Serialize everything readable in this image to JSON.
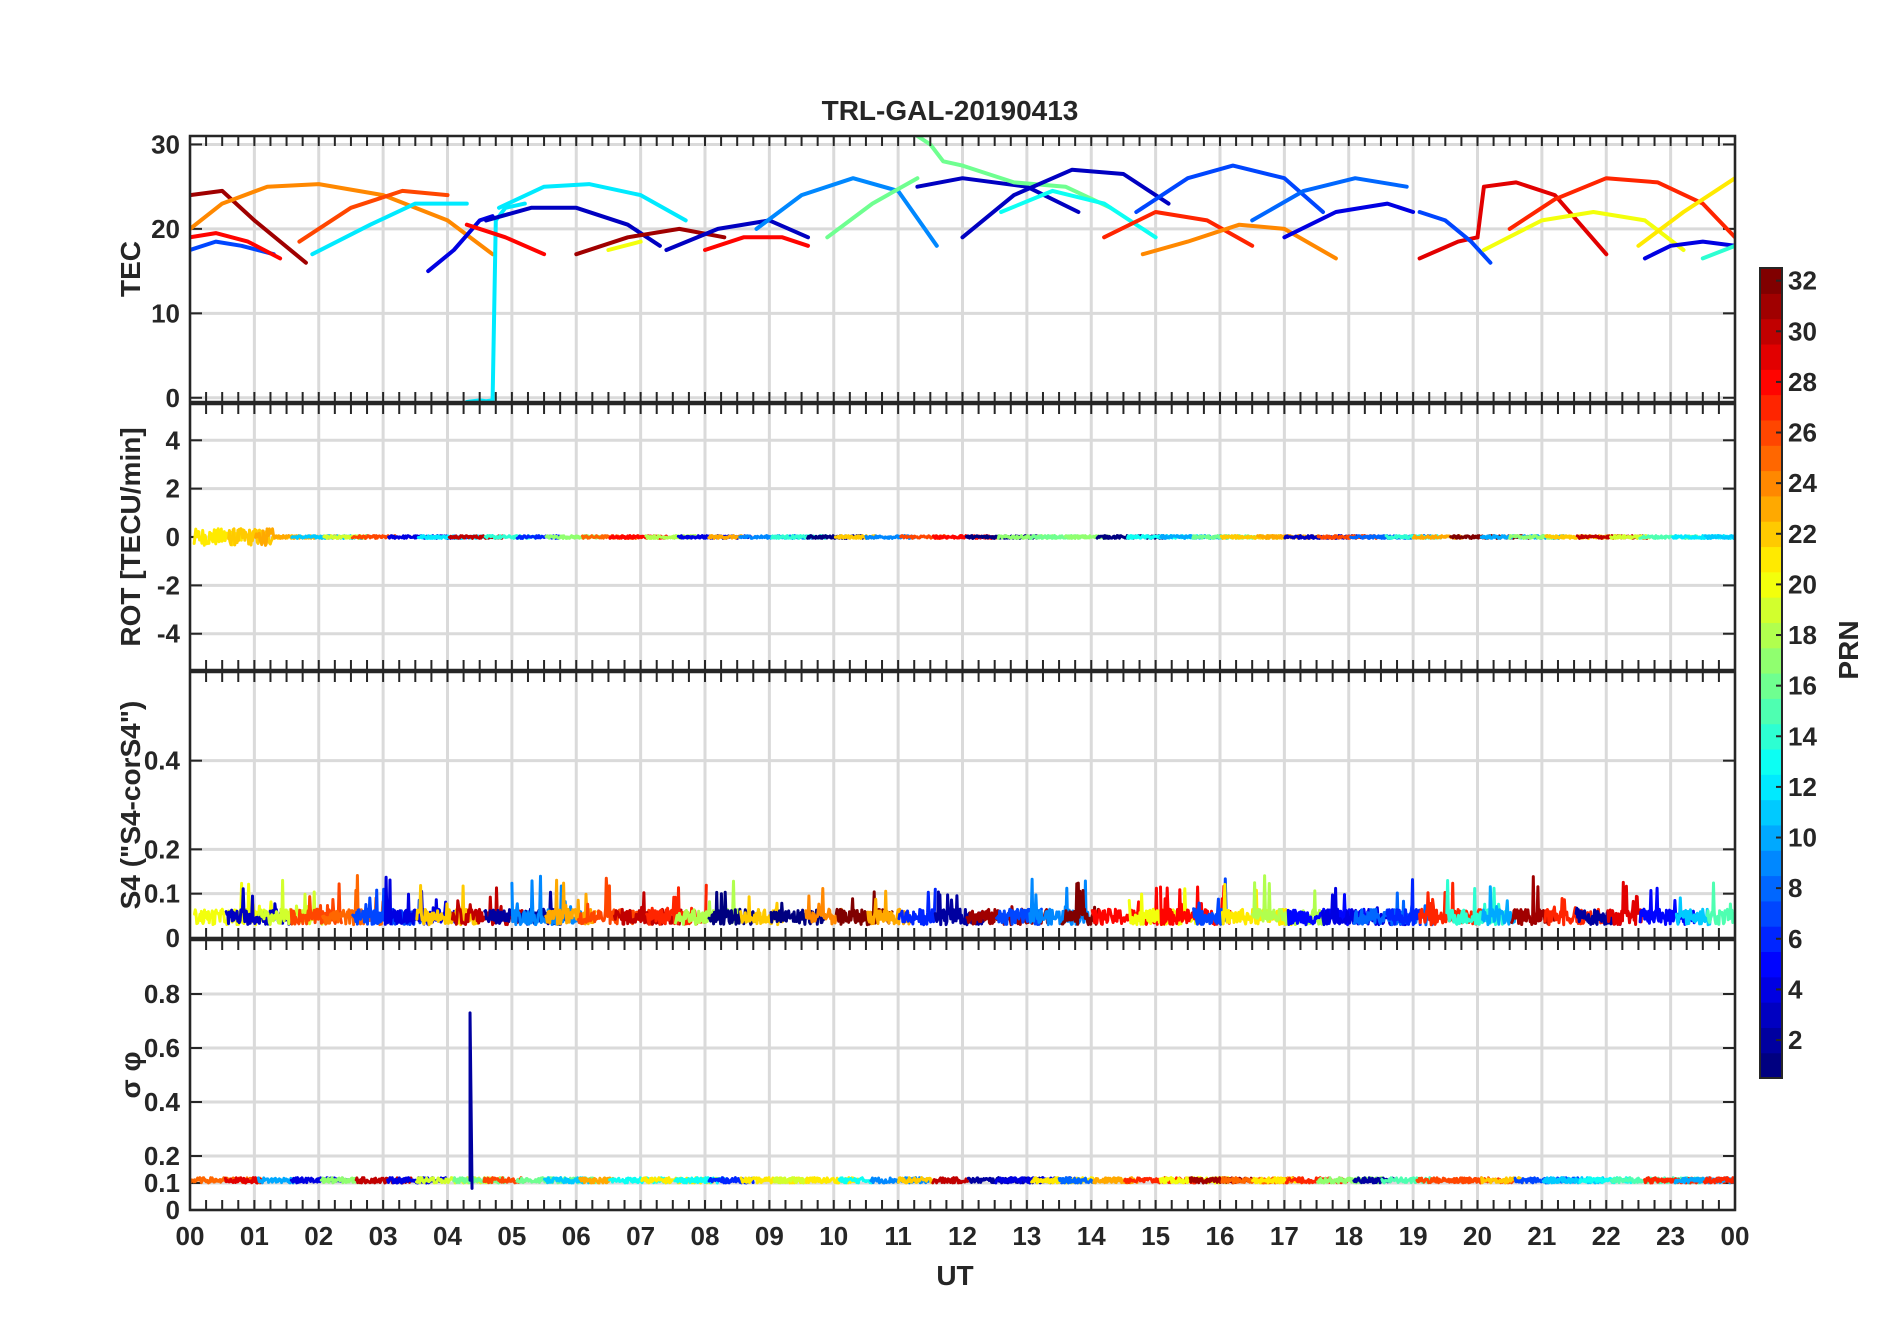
{
  "chart_data": {
    "type": "line",
    "title": "TRL-GAL-20190413",
    "xlabel": "UT",
    "xlim": [
      0,
      24
    ],
    "x_tick_labels": [
      "00",
      "01",
      "02",
      "03",
      "04",
      "05",
      "06",
      "07",
      "08",
      "09",
      "10",
      "11",
      "12",
      "13",
      "14",
      "15",
      "16",
      "17",
      "18",
      "19",
      "20",
      "21",
      "22",
      "23",
      "00"
    ],
    "colorbar": {
      "label": "PRN",
      "range": [
        1,
        32
      ],
      "colormap": "jet",
      "tick_labels": [
        "2",
        "4",
        "6",
        "8",
        "10",
        "12",
        "14",
        "16",
        "18",
        "20",
        "22",
        "24",
        "26",
        "28",
        "30",
        "32"
      ]
    },
    "panels": [
      {
        "id": "tec",
        "ylabel": "TEC",
        "ylim": [
          -0.5,
          31
        ],
        "y_ticks": [
          0,
          10,
          20,
          30
        ],
        "y_tick_labels": [
          "0",
          "10",
          "20",
          "30"
        ],
        "note": "approximate TEC arcs per satellite pass",
        "series": [
          {
            "prn": 7,
            "x": [
              0,
              0.4,
              0.8,
              1.3
            ],
            "y": [
              17.5,
              18.5,
              18,
              17
            ]
          },
          {
            "prn": 28,
            "x": [
              0,
              0.4,
              0.9,
              1.4
            ],
            "y": [
              19,
              19.5,
              18.5,
              16.5
            ]
          },
          {
            "prn": 31,
            "x": [
              0,
              0.5,
              1.0,
              1.8
            ],
            "y": [
              24,
              24.5,
              21,
              16
            ]
          },
          {
            "prn": 24,
            "x": [
              0,
              0.5,
              1.2,
              2.0,
              3.0,
              4.0,
              4.7
            ],
            "y": [
              20,
              23,
              25,
              25.3,
              24,
              21,
              17
            ]
          },
          {
            "prn": 26,
            "x": [
              1.7,
              2.5,
              3.3,
              4.0
            ],
            "y": [
              18.5,
              22.5,
              24.5,
              24
            ]
          },
          {
            "prn": 12,
            "x": [
              1.9,
              2.8,
              3.5,
              4.3
            ],
            "y": [
              17,
              20.5,
              23,
              23
            ]
          },
          {
            "prn": 4,
            "x": [
              3.7,
              4.1,
              4.5,
              4.7
            ],
            "y": [
              15,
              17.5,
              21,
              21.5
            ]
          },
          {
            "prn": 12,
            "x": [
              4.3,
              4.5,
              4.6,
              4.7,
              4.75,
              4.9,
              5.2
            ],
            "y": [
              -0.5,
              -0.3,
              -0.4,
              -0.3,
              21,
              22.5,
              23
            ]
          },
          {
            "prn": 12,
            "x": [
              4.8,
              5.5,
              6.2,
              7.0,
              7.7
            ],
            "y": [
              22.5,
              25,
              25.3,
              24,
              21
            ]
          },
          {
            "prn": 3,
            "x": [
              4.6,
              5.3,
              6.0,
              6.8,
              7.3
            ],
            "y": [
              21,
              22.5,
              22.5,
              20.5,
              18
            ]
          },
          {
            "prn": 28,
            "x": [
              4.3,
              4.9,
              5.5
            ],
            "y": [
              20.5,
              19,
              17
            ]
          },
          {
            "prn": 20,
            "x": [
              6.5,
              7.0
            ],
            "y": [
              17.5,
              18.5
            ]
          },
          {
            "prn": 31,
            "x": [
              6.0,
              6.8,
              7.6,
              8.3
            ],
            "y": [
              17,
              19,
              20,
              19
            ]
          },
          {
            "prn": 3,
            "x": [
              7.4,
              8.2,
              9.0,
              9.6
            ],
            "y": [
              17.5,
              20,
              21,
              19
            ]
          },
          {
            "prn": 28,
            "x": [
              8.0,
              8.6,
              9.2,
              9.6
            ],
            "y": [
              17.5,
              19,
              19,
              18
            ]
          },
          {
            "prn": 9,
            "x": [
              8.8,
              9.5,
              10.3,
              11.0,
              11.6
            ],
            "y": [
              20,
              24,
              26,
              24.5,
              18
            ]
          },
          {
            "prn": 16,
            "x": [
              9.9,
              10.6,
              11.3
            ],
            "y": [
              19,
              23,
              26
            ]
          },
          {
            "prn": 16,
            "x": [
              11.3,
              11.5,
              11.7,
              12.0
            ],
            "y": [
              31,
              30,
              28,
              27.5
            ]
          },
          {
            "prn": 3,
            "x": [
              11.3,
              12.0,
              13.0,
              13.8
            ],
            "y": [
              25,
              26,
              25,
              22
            ]
          },
          {
            "prn": 16,
            "x": [
              12.0,
              12.8,
              13.6,
              14.3
            ],
            "y": [
              27.5,
              25.5,
              25,
              22.5
            ]
          },
          {
            "prn": 3,
            "x": [
              12.0,
              12.8,
              13.7,
              14.5,
              15.2
            ],
            "y": [
              19,
              24,
              27,
              26.5,
              23
            ]
          },
          {
            "prn": 13,
            "x": [
              12.6,
              13.4,
              14.2,
              15.0
            ],
            "y": [
              22,
              24.5,
              23,
              19
            ]
          },
          {
            "prn": 7,
            "x": [
              14.7,
              15.5,
              16.2,
              17.0,
              17.6
            ],
            "y": [
              22,
              26,
              27.5,
              26,
              22
            ]
          },
          {
            "prn": 27,
            "x": [
              14.2,
              15.0,
              15.8,
              16.5
            ],
            "y": [
              19,
              22,
              21,
              18
            ]
          },
          {
            "prn": 24,
            "x": [
              14.8,
              15.5,
              16.3,
              17.0,
              17.8
            ],
            "y": [
              17,
              18.5,
              20.5,
              20,
              16.5
            ]
          },
          {
            "prn": 4,
            "x": [
              17.0,
              17.8,
              18.6,
              19.0
            ],
            "y": [
              19,
              22,
              23,
              22
            ]
          },
          {
            "prn": 8,
            "x": [
              16.5,
              17.3,
              18.1,
              18.9
            ],
            "y": [
              21,
              24.5,
              26,
              25
            ]
          },
          {
            "prn": 29,
            "x": [
              19.1,
              19.4,
              19.7,
              20.0
            ],
            "y": [
              16.5,
              17.5,
              18.5,
              19
            ]
          },
          {
            "prn": 7,
            "x": [
              19.1,
              19.5,
              19.9,
              20.2
            ],
            "y": [
              22,
              21,
              18.5,
              16
            ]
          },
          {
            "prn": 29,
            "x": [
              20.0,
              20.1,
              20.6,
              21.2,
              22.0
            ],
            "y": [
              19,
              25,
              25.5,
              24,
              17
            ]
          },
          {
            "prn": 20,
            "x": [
              20.1,
              21.0,
              21.8,
              22.6,
              23.2
            ],
            "y": [
              17.5,
              21,
              22,
              21,
              17.5
            ]
          },
          {
            "prn": 27,
            "x": [
              20.5,
              21.2,
              22.0,
              22.8,
              23.5,
              24.0
            ],
            "y": [
              20,
              23.5,
              26,
              25.5,
              23,
              19
            ]
          },
          {
            "prn": 21,
            "x": [
              22.5,
              23.2,
              24.0
            ],
            "y": [
              18,
              22,
              26
            ]
          },
          {
            "prn": 4,
            "x": [
              22.6,
              23.0,
              23.5,
              24.0
            ],
            "y": [
              16.5,
              18,
              18.5,
              18
            ]
          },
          {
            "prn": 14,
            "x": [
              23.5,
              24.0
            ],
            "y": [
              16.5,
              18
            ]
          }
        ]
      },
      {
        "id": "rot",
        "ylabel": "ROT [TECU/min]",
        "ylim": [
          -5.5,
          5.5
        ],
        "y_ticks": [
          -4,
          -2,
          0,
          2,
          4
        ],
        "y_tick_labels": [
          "-4",
          "-2",
          "0",
          "2",
          "4"
        ],
        "note": "rate of TEC, near zero; noisier during 00-01 UT"
      },
      {
        "id": "s4",
        "ylabel": "S4 (\"S4-corS4\")",
        "ylim": [
          0,
          0.6
        ],
        "y_ticks": [
          0,
          0.1,
          0.2,
          0.4
        ],
        "y_tick_labels": [
          "0",
          "0.1",
          "0.2",
          "0.4"
        ],
        "note": "amplitude scintillation index, mostly 0.02-0.1 with spikes up to ~0.16"
      },
      {
        "id": "sigma_phi",
        "ylabel": "σ φ",
        "ylim": [
          0,
          1
        ],
        "y_ticks": [
          0,
          0.1,
          0.2,
          0.4,
          0.6,
          0.8
        ],
        "y_tick_labels": [
          "0",
          "0.1",
          "0.2",
          "0.4",
          "0.6",
          "0.8"
        ],
        "note": "phase scintillation index, ~0.1 baseline",
        "spike": {
          "prn": 2,
          "x": 4.35,
          "y": 0.73
        }
      }
    ]
  }
}
